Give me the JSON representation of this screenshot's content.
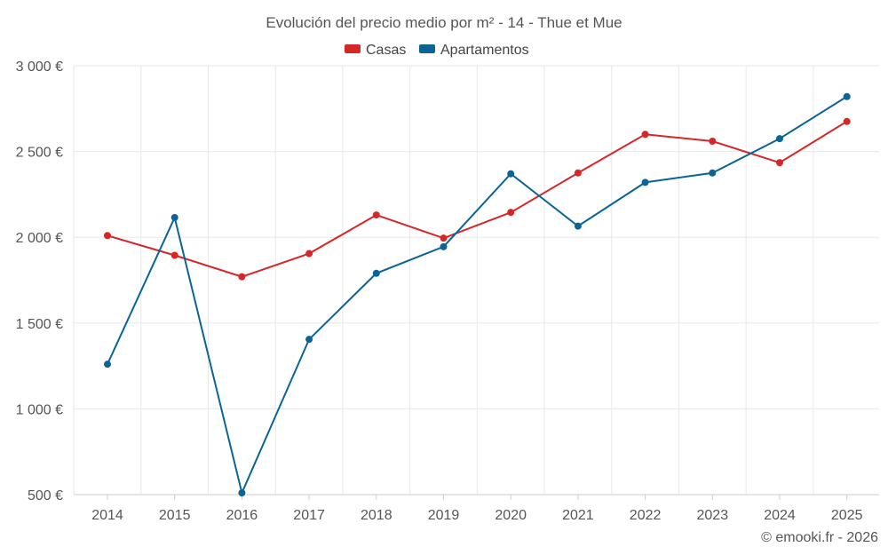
{
  "chart_data": {
    "type": "line",
    "title": "Evolución del precio medio por m² - 14 - Thue et Mue",
    "categories": [
      "2014",
      "2015",
      "2016",
      "2017",
      "2018",
      "2019",
      "2020",
      "2021",
      "2022",
      "2023",
      "2024",
      "2025"
    ],
    "series": [
      {
        "name": "Casas",
        "color": "#d62728",
        "values": [
          2010,
          1895,
          1770,
          1905,
          2130,
          1995,
          2145,
          2375,
          2600,
          2560,
          2435,
          2675
        ]
      },
      {
        "name": "Apartamentos",
        "color": "#0a6496",
        "values": [
          1260,
          2115,
          510,
          1405,
          1790,
          1945,
          2370,
          2065,
          2320,
          2375,
          2575,
          2820
        ]
      }
    ],
    "y_ticks": [
      500,
      1000,
      1500,
      2000,
      2500,
      3000
    ],
    "y_tick_labels": [
      "500 €",
      "1 000 €",
      "1 500 €",
      "2 000 €",
      "2 500 €",
      "3 000 €"
    ],
    "ylim": [
      500,
      3000
    ],
    "grid": true,
    "legend": "top-center",
    "xlabel": "",
    "ylabel": ""
  },
  "credit": "© emooki.fr - 2026"
}
